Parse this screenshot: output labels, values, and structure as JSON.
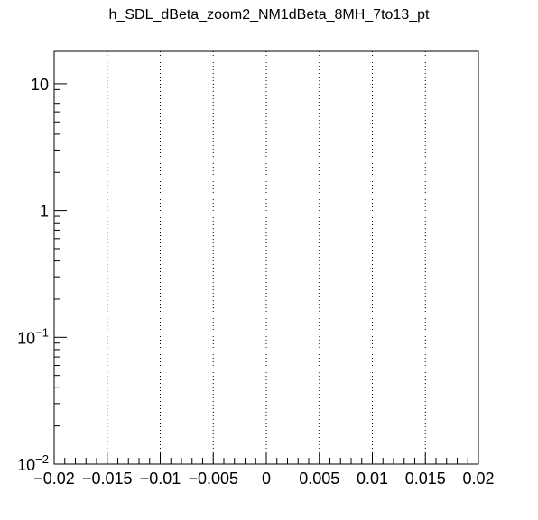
{
  "chart_data": {
    "type": "line",
    "title": "h_SDL_dBeta_zoom2_NM1dBeta_8MH_7to13_pt",
    "xlabel": "",
    "ylabel": "",
    "xlim": [
      -0.02,
      0.02
    ],
    "ylim": [
      0.01,
      18
    ],
    "yscale": "log",
    "grid": "vertical-dotted",
    "series": [],
    "x_ticks": [
      "−0.02",
      "−0.015",
      "−0.01",
      "−0.005",
      "0",
      "0.005",
      "0.01",
      "0.015",
      "0.02"
    ],
    "x_tick_values": [
      -0.02,
      -0.015,
      -0.01,
      -0.005,
      0,
      0.005,
      0.01,
      0.015,
      0.02
    ],
    "y_ticks": [
      {
        "value": 0.01,
        "base": "10",
        "exp": "−2"
      },
      {
        "value": 0.1,
        "base": "10",
        "exp": "−1"
      },
      {
        "value": 1,
        "base": "1",
        "exp": ""
      },
      {
        "value": 10,
        "base": "10",
        "exp": ""
      }
    ]
  }
}
